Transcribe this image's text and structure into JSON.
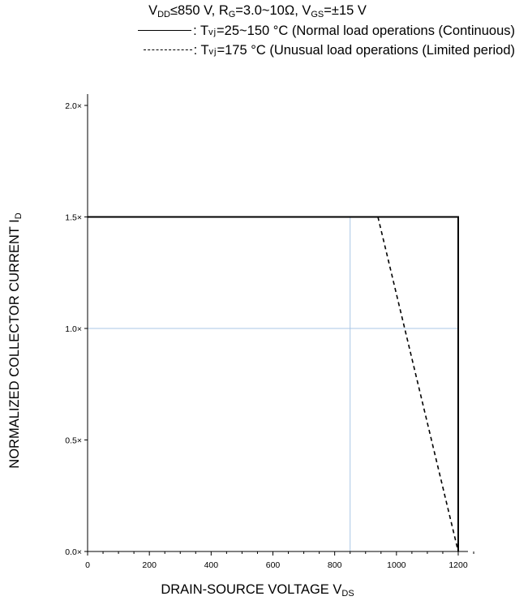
{
  "header": {
    "line1": {
      "v": "V",
      "v_sub": "DD",
      "v_rest": "≤850 V, R",
      "r_sub": "G",
      "r_rest": "=3.0~10Ω, V",
      "vgs_sub": "GS",
      "vgs_rest": "=±15 V"
    },
    "legend": [
      {
        "prefix": ": T",
        "sub": "vj",
        "text": "=25~150 °C (Normal load operations (Continuous)",
        "style": "solid"
      },
      {
        "prefix": ": T",
        "sub": "vj",
        "text": "=175 °C (Unusual load operations (Limited period)",
        "style": "dashed"
      }
    ]
  },
  "axes": {
    "ylabel": "NORMALIZED COLLECTOR CURRENT   I",
    "ylabel_sub": "D",
    "xlabel": "DRAIN-SOURCE VOLTAGE V",
    "xlabel_sub": "DS"
  },
  "chart_data": {
    "type": "line",
    "xlim": [
      0,
      1200
    ],
    "ylim": [
      0,
      2.0
    ],
    "x_ticks": [
      0,
      200,
      400,
      600,
      800,
      1000,
      1200
    ],
    "x_tick_labels": [
      "0",
      "200",
      "400",
      "600",
      "800",
      "1000",
      "1200"
    ],
    "y_ticks": [
      0,
      0.5,
      1.0,
      1.5,
      2.0
    ],
    "y_tick_labels": [
      "0.0×",
      "0.5×",
      "1.0×",
      "1.5×",
      "2.0×"
    ],
    "gridlines": {
      "x": [
        850
      ],
      "y": [
        1.0
      ]
    },
    "grid_color": "#a9c7e6",
    "series": [
      {
        "style": "solid",
        "x": [
          0,
          1200,
          1200
        ],
        "y": [
          1.5,
          1.5,
          0
        ]
      },
      {
        "style": "dashed",
        "x": [
          940,
          1200
        ],
        "y": [
          1.5,
          0
        ]
      }
    ]
  }
}
